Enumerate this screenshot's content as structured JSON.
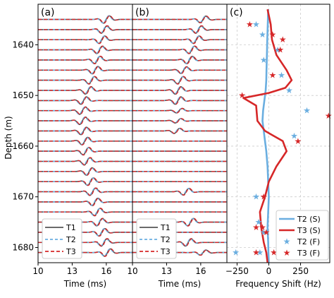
{
  "colors": {
    "t1": "#555555",
    "t2": "#6aaee0",
    "t3": "#d62728",
    "grid": "#cccccc"
  },
  "ylabel": "Depth (m)",
  "chart_data": [
    {
      "panel_label": "(a)",
      "type": "line",
      "xlabel": "Time (ms)",
      "xlim": [
        10,
        18.3
      ],
      "xticks": [
        10,
        13,
        16
      ],
      "ylim": [
        1683,
        1632
      ],
      "yticks": [
        1640,
        1650,
        1660,
        1670,
        1680
      ],
      "trace_depths": [
        1635,
        1637,
        1639,
        1641,
        1643,
        1645,
        1647,
        1649,
        1651,
        1653,
        1655,
        1657,
        1659,
        1661,
        1663,
        1665,
        1667,
        1669,
        1671,
        1673,
        1675,
        1677,
        1679,
        1681
      ],
      "arrival_ms": [
        16.0,
        15.8,
        15.6,
        15.4,
        15.2,
        15.0,
        14.7,
        14.4,
        14.0,
        13.9,
        13.9,
        14.0,
        14.1,
        14.2,
        14.3,
        14.5,
        14.6,
        14.8,
        15.0,
        15.2,
        15.4,
        15.6,
        15.8,
        16.1
      ],
      "legend": {
        "position": "lower-left",
        "entries": [
          "T1",
          "T2",
          "T3"
        ]
      }
    },
    {
      "panel_label": "(b)",
      "type": "line",
      "xlabel": "Time (ms)",
      "xlim": [
        10,
        18.3
      ],
      "xticks": [
        10,
        13,
        16
      ],
      "ylim": [
        1683,
        1632
      ],
      "trace_depths": [
        1635,
        1637,
        1639,
        1641,
        1643,
        1645,
        1647,
        1649,
        1651,
        1653,
        1655,
        1657,
        1659,
        1661,
        1663,
        1665,
        1667,
        1669,
        1671,
        1673,
        1675,
        1677,
        1679,
        1681
      ],
      "arrival_ms": [
        16.2,
        15.8,
        15.6,
        15.2,
        15.0,
        14.5,
        14.2,
        14.0,
        14.0,
        14.1,
        14.0,
        13.9,
        14.0,
        14.1,
        14.2,
        14.3,
        14.5,
        14.7,
        14.8,
        15.0,
        15.1,
        15.0,
        14.9,
        16.2
      ],
      "amplitude": [
        0.9,
        1.0,
        1.0,
        1.0,
        1.0,
        0.9,
        1.0,
        1.0,
        1.0,
        0.6,
        0.6,
        0.7,
        0.0,
        0.0,
        0.0,
        0.0,
        0.0,
        0.9,
        0.0,
        0.0,
        1.0,
        0.0,
        1.0,
        0.7
      ],
      "legend": {
        "position": "lower-left",
        "entries": [
          "T1",
          "T2",
          "T3"
        ]
      }
    },
    {
      "panel_label": "(c)",
      "type": "line",
      "xlabel": "Frequency Shift (Hz)",
      "xlim": [
        -330,
        480
      ],
      "xticks": [
        -250,
        0,
        250
      ],
      "ylim": [
        1683,
        1632
      ],
      "grid": true,
      "series": [
        {
          "name": "T2 (S)",
          "style": "line",
          "color": "#6aaee0",
          "x": [
            -5,
            -8,
            -12,
            -15,
            -18,
            -20,
            -25,
            -35,
            -45,
            -50,
            -40,
            -30,
            -20,
            -10,
            -5,
            0,
            -5,
            -10,
            -5,
            -3,
            0
          ],
          "y": [
            1633,
            1636,
            1639,
            1642,
            1645,
            1647,
            1649,
            1651,
            1653,
            1655,
            1657,
            1659,
            1661,
            1664,
            1667,
            1670,
            1673,
            1676,
            1679,
            1681,
            1683
          ]
        },
        {
          "name": "T3 (S)",
          "style": "line",
          "color": "#d62728",
          "x": [
            -10,
            15,
            25,
            60,
            140,
            180,
            130,
            0,
            -200,
            -100,
            -90,
            -30,
            110,
            140,
            60,
            0,
            -30,
            -70,
            -60,
            -40,
            -20,
            -10
          ],
          "y": [
            1633,
            1636,
            1639,
            1642,
            1645,
            1647,
            1648.5,
            1649.5,
            1650.5,
            1652,
            1655,
            1657,
            1659,
            1661,
            1664,
            1667,
            1670,
            1673,
            1676,
            1679,
            1681,
            1683
          ]
        },
        {
          "name": "T2 (F)",
          "style": "star",
          "color": "#6aaee0",
          "x": [
            -100,
            -50,
            70,
            -40,
            100,
            160,
            300,
            200,
            -100,
            -80,
            -40,
            -260,
            -70
          ],
          "y": [
            1636,
            1638,
            1641,
            1643,
            1646,
            1649,
            1653,
            1658,
            1670,
            1675,
            1677,
            1681,
            1681
          ]
        },
        {
          "name": "T3 (F)",
          "style": "star",
          "color": "#d62728",
          "x": [
            -150,
            30,
            110,
            90,
            30,
            -210,
            470,
            230,
            -50,
            -40,
            -20,
            -100,
            40,
            -100
          ],
          "y": [
            1636,
            1638,
            1639,
            1641,
            1646,
            1650,
            1654,
            1659,
            1676,
            1670,
            1677,
            1681,
            1681,
            1676
          ]
        }
      ],
      "legend": {
        "position": "lower-right",
        "entries": [
          "T2 (S)",
          "T3 (S)",
          "T2 (F)",
          "T3 (F)"
        ]
      }
    }
  ]
}
